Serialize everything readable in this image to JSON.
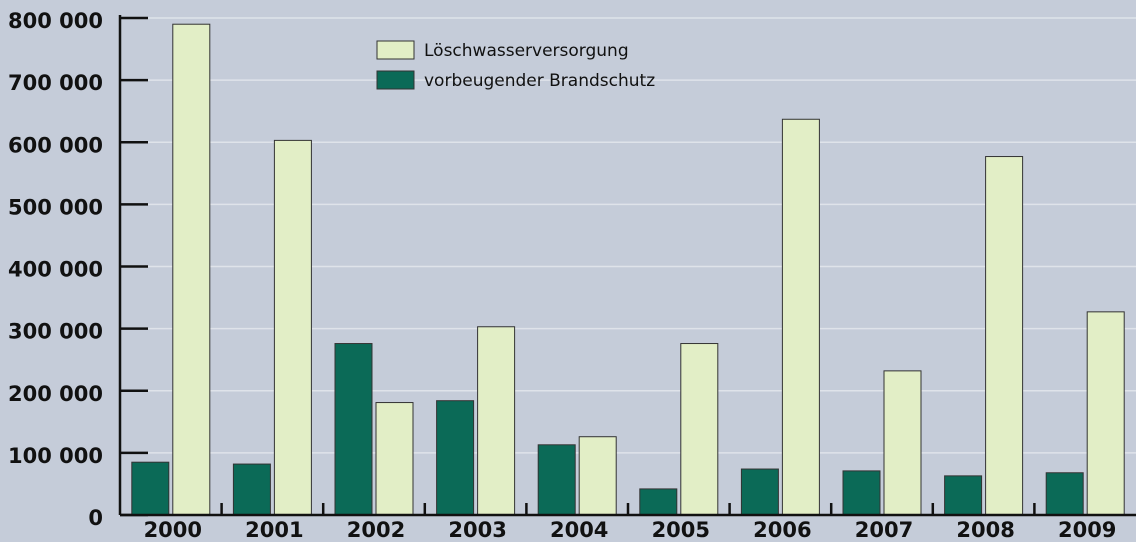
{
  "chart_data": {
    "type": "bar",
    "categories": [
      "2000",
      "2001",
      "2002",
      "2003",
      "2004",
      "2005",
      "2006",
      "2007",
      "2008",
      "2009"
    ],
    "series": [
      {
        "name": "vorbeugender Brandschutz",
        "color": "#0b6a57",
        "values": [
          85000,
          82000,
          276000,
          184000,
          113000,
          42000,
          74000,
          71000,
          63000,
          68000
        ]
      },
      {
        "name": "Löschwasserversorgung",
        "color": "#e2eec6",
        "values": [
          790000,
          603000,
          181000,
          303000,
          126000,
          276000,
          637000,
          232000,
          577000,
          327000
        ]
      }
    ],
    "legend_order": [
      1,
      0
    ],
    "ylim": [
      0,
      800000
    ],
    "yticks": [
      0,
      {
        "value": 100000,
        "label": "100 000"
      },
      {
        "value": 200000,
        "label": "200 000"
      },
      {
        "value": 300000,
        "label": "300 000"
      },
      {
        "value": 400000,
        "label": "400 000"
      },
      {
        "value": 500000,
        "label": "500 000"
      },
      {
        "value": 600000,
        "label": "600 000"
      },
      {
        "value": 700000,
        "label": "700 000"
      },
      {
        "value": 800000,
        "label": "800 000"
      }
    ],
    "grid": true
  }
}
